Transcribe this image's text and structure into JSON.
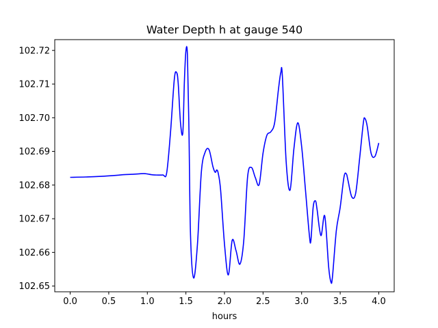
{
  "chart_data": {
    "type": "line",
    "title": "Water Depth h at gauge 540",
    "xlabel": "hours",
    "ylabel": "",
    "xlim": [
      -0.2,
      4.2
    ],
    "ylim": [
      102.6483,
      102.7232
    ],
    "xticks": [
      0.0,
      0.5,
      1.0,
      1.5,
      2.0,
      2.5,
      3.0,
      3.5,
      4.0
    ],
    "xtick_labels": [
      "0.0",
      "0.5",
      "1.0",
      "1.5",
      "2.0",
      "2.5",
      "3.0",
      "3.5",
      "4.0"
    ],
    "yticks": [
      102.65,
      102.66,
      102.67,
      102.68,
      102.69,
      102.7,
      102.71,
      102.72
    ],
    "ytick_labels": [
      "102.65",
      "102.66",
      "102.67",
      "102.68",
      "102.69",
      "102.70",
      "102.71",
      "102.72"
    ],
    "grid": false,
    "series": [
      {
        "color": "#0000ff",
        "x": [
          0.0,
          0.2,
          0.4,
          0.6,
          0.7,
          0.8,
          0.95,
          1.0,
          1.05,
          1.1,
          1.2,
          1.25,
          1.3,
          1.35,
          1.38,
          1.4,
          1.43,
          1.46,
          1.48,
          1.5,
          1.52,
          1.54,
          1.56,
          1.6,
          1.65,
          1.7,
          1.75,
          1.8,
          1.85,
          1.88,
          1.9,
          1.92,
          1.95,
          2.0,
          2.05,
          2.1,
          2.15,
          2.2,
          2.25,
          2.3,
          2.35,
          2.4,
          2.45,
          2.5,
          2.55,
          2.6,
          2.65,
          2.7,
          2.73,
          2.75,
          2.8,
          2.85,
          2.9,
          2.95,
          3.0,
          3.05,
          3.1,
          3.12,
          3.15,
          3.18,
          3.2,
          3.25,
          3.3,
          3.35,
          3.38,
          3.4,
          3.45,
          3.5,
          3.55,
          3.58,
          3.6,
          3.65,
          3.7,
          3.75,
          3.8,
          3.82,
          3.85,
          3.9,
          3.95,
          4.0
        ],
        "y": [
          102.6823,
          102.6824,
          102.6826,
          102.6829,
          102.6831,
          102.6832,
          102.6834,
          102.6833,
          102.6831,
          102.683,
          102.683,
          102.6835,
          102.6955,
          102.7115,
          102.7134,
          102.7103,
          102.6985,
          102.6955,
          102.7105,
          102.7198,
          102.7185,
          102.6955,
          102.665,
          102.6524,
          102.6625,
          102.6838,
          102.6898,
          102.6905,
          102.6855,
          102.6838,
          102.6845,
          102.6834,
          102.6785,
          102.6625,
          102.6533,
          102.6636,
          102.6605,
          102.6565,
          102.6635,
          102.6825,
          102.6852,
          102.6822,
          102.6802,
          102.6895,
          102.6948,
          102.6958,
          102.6985,
          102.7085,
          102.7134,
          102.7125,
          102.6868,
          102.6785,
          102.6908,
          102.6985,
          102.6915,
          102.6785,
          102.6652,
          102.6635,
          102.6735,
          102.6753,
          102.6728,
          102.665,
          102.6708,
          102.6558,
          102.6512,
          102.6528,
          102.6665,
          102.6734,
          102.6825,
          102.6833,
          102.6815,
          102.6765,
          102.6775,
          102.6875,
          102.6985,
          102.6998,
          102.6975,
          102.6895,
          102.6885,
          102.6925
        ]
      }
    ]
  }
}
